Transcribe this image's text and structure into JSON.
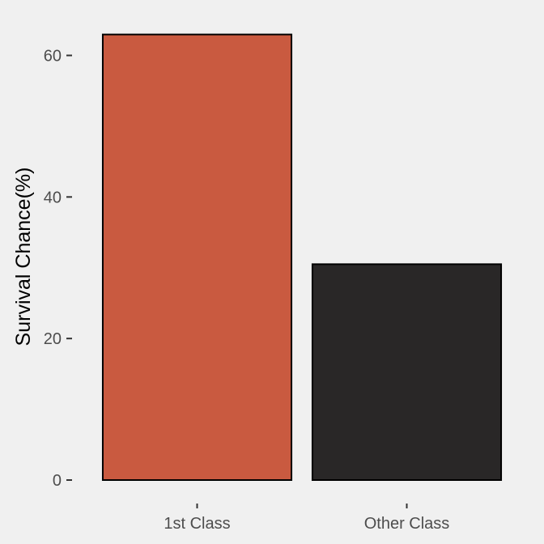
{
  "chart_data": {
    "type": "bar",
    "categories": [
      "1st Class",
      "Other Class"
    ],
    "values": [
      62.96,
      30.5
    ],
    "title": "",
    "xlabel": "",
    "ylabel": "Survival Chance(%)",
    "ylim": [
      0,
      65
    ],
    "yticks": [
      0,
      20,
      40,
      60
    ],
    "ytick_labels": [
      "0",
      "20",
      "40",
      "60"
    ],
    "grid": false,
    "legend": "none",
    "colors": {
      "background": "#f0f0f0",
      "bars": [
        "#c95a40",
        "#292727"
      ],
      "bar_outline": "#000000",
      "tick_label": "#4d4d4d",
      "tick_mark": "#333333"
    }
  }
}
